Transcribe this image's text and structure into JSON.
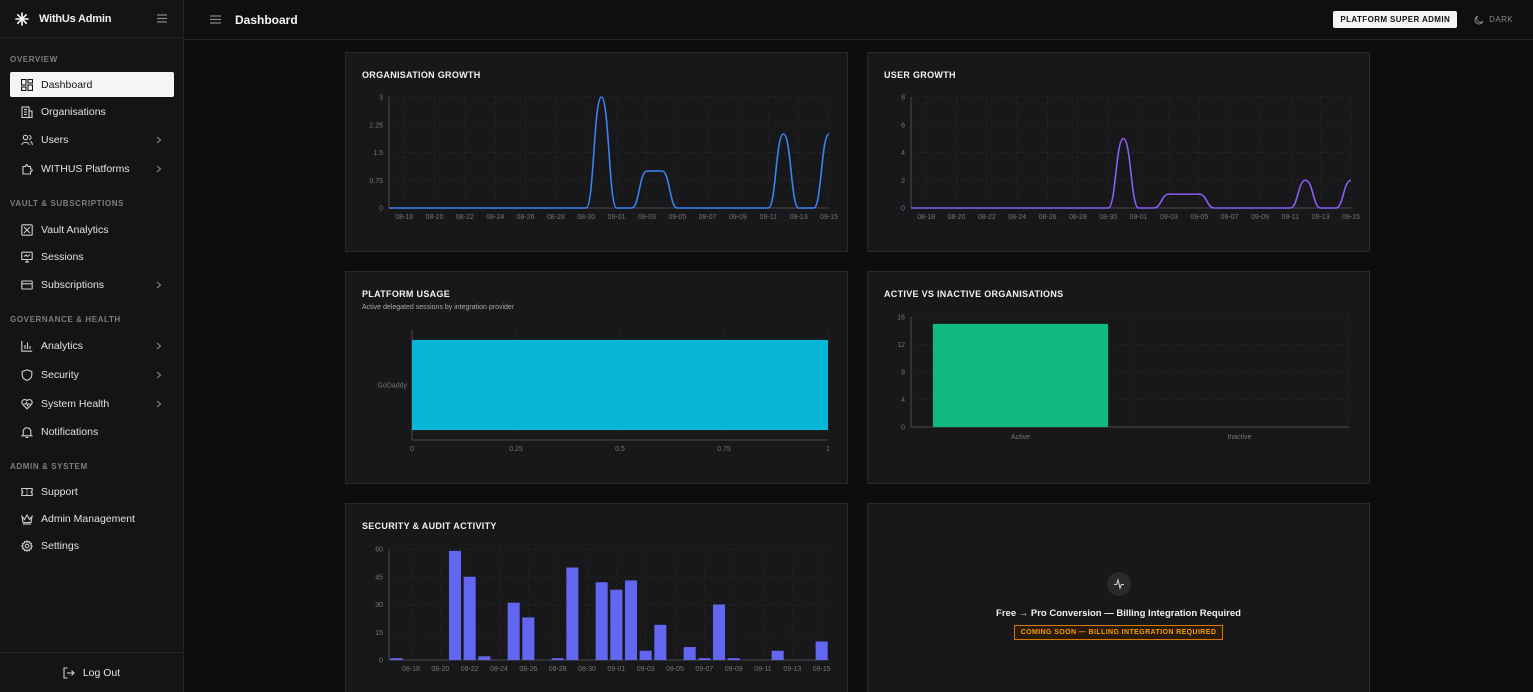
{
  "app": {
    "name": "WithUs Admin"
  },
  "sidebar": {
    "sections": [
      {
        "label": "OVERVIEW"
      },
      {
        "label": "VAULT & SUBSCRIPTIONS"
      },
      {
        "label": "GOVERNANCE & HEALTH"
      },
      {
        "label": "ADMIN & SYSTEM"
      }
    ],
    "items": [
      {
        "label": "Dashboard",
        "icon": "dashboard-grid-icon"
      },
      {
        "label": "Organisations",
        "icon": "building-icon"
      },
      {
        "label": "Users",
        "icon": "users-icon"
      },
      {
        "label": "WITHUS Platforms",
        "icon": "puzzle-icon"
      },
      {
        "label": "Vault Analytics",
        "icon": "vault-icon"
      },
      {
        "label": "Sessions",
        "icon": "monitor-icon"
      },
      {
        "label": "Subscriptions",
        "icon": "credit-card-icon"
      },
      {
        "label": "Analytics",
        "icon": "bar-chart-icon"
      },
      {
        "label": "Security",
        "icon": "shield-icon"
      },
      {
        "label": "System Health",
        "icon": "heart-pulse-icon"
      },
      {
        "label": "Notifications",
        "icon": "bell-icon"
      },
      {
        "label": "Support",
        "icon": "ticket-icon"
      },
      {
        "label": "Admin Management",
        "icon": "crown-icon"
      },
      {
        "label": "Settings",
        "icon": "gear-icon"
      }
    ],
    "logout_label": "Log Out"
  },
  "header": {
    "title": "Dashboard",
    "role_badge": "PLATFORM SUPER ADMIN",
    "theme_label": "DARK"
  },
  "cards": {
    "org_growth_title": "ORGANISATION GROWTH",
    "user_growth_title": "USER GROWTH",
    "platform_usage_title": "PLATFORM USAGE",
    "platform_usage_subtitle": "Active delegated sessions by integration provider",
    "active_inactive_title": "ACTIVE VS INACTIVE ORGANISATIONS",
    "security_title": "SECURITY & AUDIT ACTIVITY",
    "conversion_text": "Free → Pro Conversion — Billing Integration Required",
    "conversion_badge": "COMING SOON — BILLING INTEGRATION REQUIRED"
  },
  "colors": {
    "accent_blue": "#3b82f6",
    "accent_purple": "#8b5cf6",
    "accent_cyan": "#06b6d4",
    "accent_green": "#10b981",
    "accent_indigo": "#6366f1",
    "warning": "#f59e0b"
  },
  "chart_data": [
    {
      "type": "line",
      "title": "ORGANISATION GROWTH",
      "x_ticks": [
        "08-18",
        "08-20",
        "08-22",
        "08-24",
        "08-26",
        "08-28",
        "08-30",
        "09-01",
        "09-03",
        "09-05",
        "09-07",
        "09-09",
        "09-11",
        "09-13",
        "09-15"
      ],
      "x": [
        "08-17",
        "08-18",
        "08-19",
        "08-20",
        "08-21",
        "08-22",
        "08-23",
        "08-24",
        "08-25",
        "08-26",
        "08-27",
        "08-28",
        "08-29",
        "08-30",
        "08-31",
        "09-01",
        "09-02",
        "09-03",
        "09-04",
        "09-05",
        "09-06",
        "09-07",
        "09-08",
        "09-09",
        "09-10",
        "09-11",
        "09-12",
        "09-13",
        "09-14",
        "09-15"
      ],
      "series": [
        {
          "values": [
            0,
            0,
            0,
            0,
            0,
            0,
            0,
            0,
            0,
            0,
            0,
            0,
            0,
            0,
            3,
            0,
            0,
            1,
            1,
            0,
            0,
            0,
            0,
            0,
            0,
            0,
            2,
            0,
            0,
            2
          ]
        }
      ],
      "y_ticks": [
        "0",
        "0.75",
        "1.5",
        "2.25",
        "3"
      ],
      "ylim": [
        0,
        3
      ]
    },
    {
      "type": "line",
      "title": "USER GROWTH",
      "x_ticks": [
        "08-18",
        "08-20",
        "08-22",
        "08-24",
        "08-26",
        "08-28",
        "08-30",
        "09-01",
        "09-03",
        "09-05",
        "09-07",
        "09-09",
        "09-11",
        "09-13",
        "09-15"
      ],
      "x": [
        "08-17",
        "08-18",
        "08-19",
        "08-20",
        "08-21",
        "08-22",
        "08-23",
        "08-24",
        "08-25",
        "08-26",
        "08-27",
        "08-28",
        "08-29",
        "08-30",
        "08-31",
        "09-01",
        "09-02",
        "09-03",
        "09-04",
        "09-05",
        "09-06",
        "09-07",
        "09-08",
        "09-09",
        "09-10",
        "09-11",
        "09-12",
        "09-13",
        "09-14",
        "09-15"
      ],
      "series": [
        {
          "values": [
            0,
            0,
            0,
            0,
            0,
            0,
            0,
            0,
            0,
            0,
            0,
            0,
            0,
            0,
            5,
            0,
            0,
            1,
            1,
            1,
            0,
            0,
            0,
            0,
            0,
            0,
            2,
            0,
            0,
            2
          ]
        }
      ],
      "y_ticks": [
        "0",
        "2",
        "4",
        "6",
        "8"
      ],
      "ylim": [
        0,
        8
      ]
    },
    {
      "type": "bar",
      "orientation": "horizontal",
      "title": "PLATFORM USAGE",
      "subtitle": "Active delegated sessions by integration provider",
      "categories": [
        "GoDaddy"
      ],
      "values": [
        1
      ],
      "x_ticks": [
        "0",
        "0.25",
        "0.5",
        "0.75",
        "1"
      ],
      "xlim": [
        0,
        1
      ]
    },
    {
      "type": "bar",
      "title": "ACTIVE VS INACTIVE ORGANISATIONS",
      "categories": [
        "Active",
        "Inactive"
      ],
      "values": [
        15,
        0
      ],
      "y_ticks": [
        "0",
        "4",
        "8",
        "12",
        "16"
      ],
      "ylim": [
        0,
        16
      ]
    },
    {
      "type": "bar",
      "title": "SECURITY & AUDIT ACTIVITY",
      "x_ticks": [
        "08-18",
        "08-20",
        "08-22",
        "08-24",
        "08-26",
        "08-28",
        "08-30",
        "09-01",
        "09-03",
        "09-05",
        "09-07",
        "09-09",
        "09-11",
        "09-13",
        "09-15"
      ],
      "categories": [
        "08-17",
        "08-18",
        "08-19",
        "08-20",
        "08-21",
        "08-22",
        "08-23",
        "08-24",
        "08-25",
        "08-26",
        "08-27",
        "08-28",
        "08-29",
        "08-30",
        "08-31",
        "09-01",
        "09-02",
        "09-03",
        "09-04",
        "09-05",
        "09-06",
        "09-07",
        "09-08",
        "09-09",
        "09-10",
        "09-11",
        "09-12",
        "09-13",
        "09-14",
        "09-15"
      ],
      "values": [
        1,
        0,
        0,
        0,
        59,
        45,
        2,
        0,
        31,
        23,
        0,
        1,
        50,
        0,
        42,
        38,
        43,
        5,
        19,
        0,
        7,
        1,
        30,
        1,
        0,
        0,
        5,
        0,
        0,
        10
      ],
      "y_ticks": [
        "0",
        "15",
        "30",
        "45",
        "60"
      ],
      "ylim": [
        0,
        60
      ]
    }
  ]
}
